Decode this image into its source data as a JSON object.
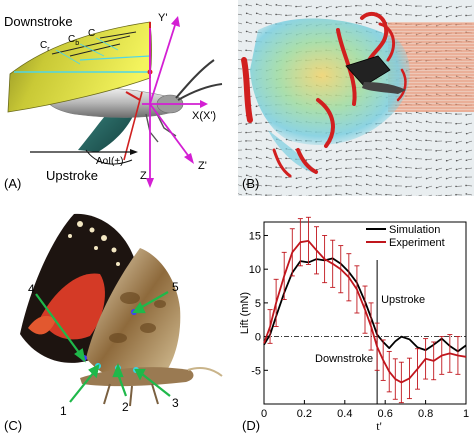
{
  "panel_a": {
    "letter": "(A)",
    "downstroke": "Downstroke",
    "upstroke": "Upstroke",
    "c_r": "C",
    "c_r_sub": "r",
    "c_b": "C",
    "c_b_sub": "b",
    "c": "C",
    "y_prime": "Y'",
    "x_axis": "X(X')",
    "z": "Z",
    "z_prime": "Z'",
    "aoi": "AoI(+)"
  },
  "panel_b": {
    "letter": "(B)"
  },
  "panel_c": {
    "letter": "(C)",
    "markers": [
      "1",
      "2",
      "3",
      "4",
      "5"
    ]
  },
  "panel_d": {
    "letter": "(D)",
    "phase_upstroke": "Upstroke",
    "phase_downstroke": "Downstroke"
  },
  "chart_data": {
    "type": "line",
    "xlabel": "t'",
    "ylabel": "Lift (mN)",
    "xlim": [
      0,
      1
    ],
    "ylim": [
      -10,
      17
    ],
    "xticks": [
      "0",
      "0.2",
      "0.4",
      "0.6",
      "0.8",
      "1"
    ],
    "yticks": [
      "-5",
      "0",
      "5",
      "10",
      "15"
    ],
    "legend_position": "top-right",
    "stroke_reversal": 0.56,
    "series": [
      {
        "name": "Simulation",
        "color": "#000000",
        "x": [
          0,
          0.03,
          0.06,
          0.1,
          0.14,
          0.18,
          0.22,
          0.26,
          0.3,
          0.34,
          0.38,
          0.42,
          0.46,
          0.5,
          0.53,
          0.56,
          0.59,
          0.62,
          0.65,
          0.68,
          0.72,
          0.76,
          0.8,
          0.84,
          0.88,
          0.92,
          0.96,
          1.0
        ],
        "y": [
          -1.2,
          0.3,
          3.0,
          6.5,
          9.5,
          11.2,
          11.0,
          11.5,
          11.3,
          11.6,
          10.8,
          9.6,
          8.0,
          5.2,
          2.8,
          0.3,
          -0.8,
          -1.7,
          -0.7,
          0.0,
          -0.4,
          -1.6,
          -2.0,
          -1.2,
          -0.3,
          -1.4,
          -2.2,
          -1.3
        ]
      },
      {
        "name": "Experiment",
        "color": "#c0161d",
        "x": [
          0,
          0.03,
          0.06,
          0.1,
          0.14,
          0.18,
          0.22,
          0.26,
          0.3,
          0.34,
          0.38,
          0.42,
          0.46,
          0.5,
          0.53,
          0.56,
          0.59,
          0.62,
          0.65,
          0.68,
          0.72,
          0.76,
          0.8,
          0.84,
          0.88,
          0.92,
          0.96,
          1.0
        ],
        "y": [
          -1.0,
          1.5,
          5.0,
          9.0,
          12.5,
          14.0,
          14.2,
          12.8,
          11.5,
          10.8,
          10.0,
          8.8,
          7.0,
          4.0,
          1.5,
          -1.5,
          -3.5,
          -5.2,
          -6.3,
          -6.8,
          -6.2,
          -4.8,
          -3.3,
          -3.6,
          -2.8,
          -2.5,
          -2.8,
          -3.0
        ],
        "error": [
          0,
          2.5,
          3.5,
          3.5,
          3.5,
          3.5,
          3.5,
          3.5,
          3.5,
          3.5,
          3.5,
          3.5,
          3.5,
          3.5,
          3.5,
          3.5,
          3.0,
          3.0,
          3.0,
          3.0,
          3.0,
          3.0,
          3.0,
          2.8,
          2.8,
          2.8,
          2.8,
          0
        ]
      }
    ]
  }
}
